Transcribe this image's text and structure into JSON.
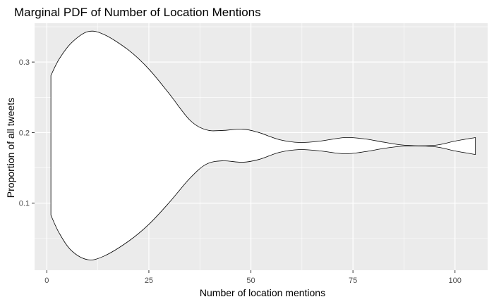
{
  "chart_data": {
    "type": "violin",
    "title": "Marginal PDF of Number of Location Mentions",
    "xlabel": "Number of location mentions",
    "ylabel": "Proportion of all tweets",
    "xlim": [
      -3,
      108
    ],
    "ylim": [
      0.005,
      0.355
    ],
    "x_ticks": [
      0,
      25,
      50,
      75,
      100
    ],
    "x_tick_labels": [
      "0",
      "25",
      "50",
      "75",
      "100"
    ],
    "y_ticks": [
      0.1,
      0.2,
      0.3
    ],
    "y_tick_labels": [
      "0.1",
      "0.2",
      "0.3"
    ],
    "grid": true,
    "background_color": "#ebebeb",
    "grid_color": "#ffffff",
    "fill_color": "#ffffff",
    "outline_color": "#000000",
    "upper_edge": [
      [
        1,
        0.281
      ],
      [
        3,
        0.304
      ],
      [
        6,
        0.327
      ],
      [
        10,
        0.343
      ],
      [
        14,
        0.339
      ],
      [
        20,
        0.317
      ],
      [
        25,
        0.29
      ],
      [
        30,
        0.255
      ],
      [
        35,
        0.218
      ],
      [
        39,
        0.204
      ],
      [
        43,
        0.203
      ],
      [
        48,
        0.205
      ],
      [
        52,
        0.2
      ],
      [
        57,
        0.19
      ],
      [
        62,
        0.186
      ],
      [
        67,
        0.188
      ],
      [
        73,
        0.193
      ],
      [
        78,
        0.191
      ],
      [
        83,
        0.186
      ],
      [
        88,
        0.182
      ],
      [
        95,
        0.182
      ],
      [
        100,
        0.188
      ],
      [
        105,
        0.193
      ]
    ],
    "lower_edge": [
      [
        1,
        0.083
      ],
      [
        3,
        0.058
      ],
      [
        6,
        0.033
      ],
      [
        10,
        0.02
      ],
      [
        14,
        0.025
      ],
      [
        20,
        0.046
      ],
      [
        25,
        0.07
      ],
      [
        30,
        0.101
      ],
      [
        35,
        0.135
      ],
      [
        39,
        0.155
      ],
      [
        43,
        0.16
      ],
      [
        48,
        0.158
      ],
      [
        52,
        0.162
      ],
      [
        57,
        0.172
      ],
      [
        62,
        0.176
      ],
      [
        67,
        0.174
      ],
      [
        73,
        0.17
      ],
      [
        78,
        0.173
      ],
      [
        83,
        0.178
      ],
      [
        88,
        0.181
      ],
      [
        95,
        0.18
      ],
      [
        100,
        0.174
      ],
      [
        105,
        0.169
      ]
    ]
  }
}
